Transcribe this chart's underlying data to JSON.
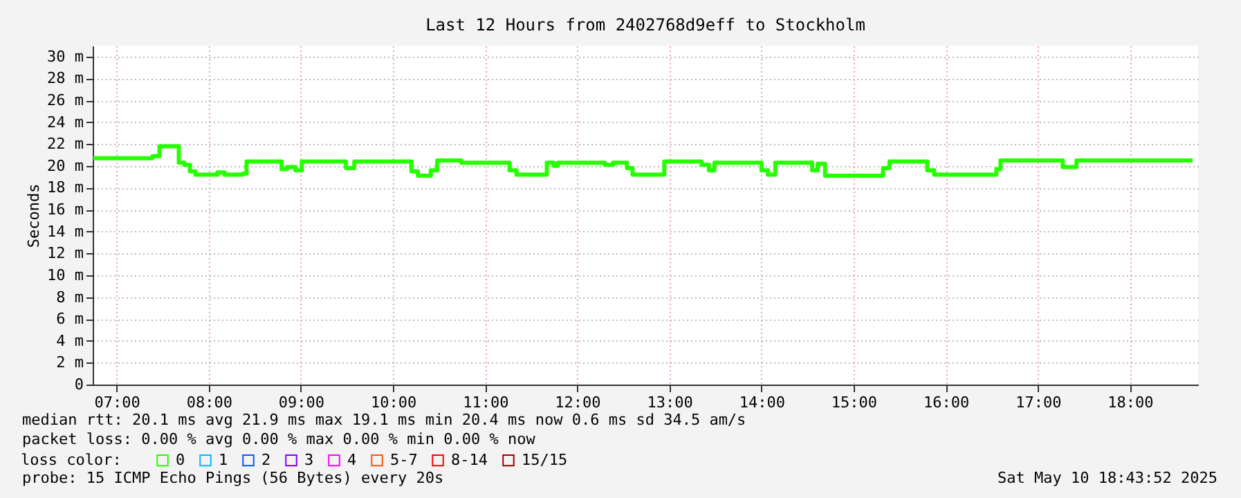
{
  "chart_data": {
    "type": "step",
    "title": "Last 12 Hours from 2402768d9eff to Stockholm",
    "ylabel": "Seconds",
    "x": [
      6.745,
      7.39,
      7.465,
      7.675,
      7.735,
      7.795,
      7.855,
      8.095,
      8.17,
      8.37,
      8.41,
      8.79,
      8.85,
      8.94,
      9.01,
      9.49,
      9.58,
      10.2,
      10.27,
      10.41,
      10.48,
      10.74,
      11.265,
      11.34,
      11.67,
      11.745,
      11.79,
      12.3,
      12.39,
      12.54,
      12.6,
      12.945,
      13.35,
      13.43,
      13.49,
      14.0,
      14.07,
      14.15,
      14.55,
      14.61,
      14.69,
      15.32,
      15.39,
      15.8,
      15.875,
      16.55,
      16.595,
      17.27,
      17.42,
      18.68
    ],
    "series": [
      {
        "name": "0",
        "color": "#26ff00",
        "values": [
          20.7,
          20.9,
          21.8,
          20.3,
          20.1,
          19.5,
          19.2,
          19.4,
          19.2,
          19.3,
          20.4,
          19.7,
          19.9,
          19.6,
          20.4,
          19.8,
          20.4,
          19.5,
          19.1,
          19.6,
          20.5,
          20.3,
          19.6,
          19.2,
          20.3,
          20.0,
          20.3,
          20.1,
          20.3,
          19.8,
          19.2,
          20.4,
          20.1,
          19.6,
          20.3,
          19.6,
          19.2,
          20.3,
          19.6,
          20.2,
          19.1,
          19.8,
          20.4,
          19.6,
          19.2,
          19.7,
          20.5,
          19.9,
          20.5,
          20.5
        ]
      },
      {
        "name": "1",
        "color": "#00b8ff",
        "values": [
          null,
          null,
          null,
          null,
          null,
          null,
          null,
          null,
          null,
          null,
          null,
          null,
          null,
          null,
          null,
          null,
          null,
          null,
          null,
          null,
          null,
          null,
          null,
          null,
          null,
          null,
          null,
          null,
          null,
          null,
          null,
          null,
          null,
          null,
          null,
          null,
          null,
          null,
          null,
          null,
          null,
          null,
          null,
          null,
          null,
          null,
          null,
          null,
          null,
          null
        ]
      },
      {
        "name": "2",
        "color": "#0059ff",
        "values": [
          null,
          null,
          null,
          null,
          null,
          null,
          null,
          null,
          null,
          null,
          null,
          null,
          null,
          null,
          null,
          null,
          null,
          null,
          null,
          null,
          null,
          null,
          null,
          null,
          null,
          null,
          null,
          null,
          null,
          null,
          null,
          null,
          null,
          null,
          null,
          null,
          null,
          null,
          null,
          null,
          null,
          null,
          null,
          null,
          null,
          null,
          null,
          null,
          null,
          null
        ]
      },
      {
        "name": "3",
        "color": "#7e00ff",
        "values": [
          null,
          null,
          null,
          null,
          null,
          null,
          null,
          null,
          null,
          null,
          null,
          null,
          null,
          null,
          null,
          null,
          null,
          null,
          null,
          null,
          null,
          null,
          null,
          null,
          null,
          null,
          null,
          null,
          null,
          null,
          null,
          null,
          null,
          null,
          null,
          null,
          null,
          null,
          null,
          null,
          null,
          null,
          null,
          null,
          null,
          null,
          null,
          null,
          null,
          null
        ]
      },
      {
        "name": "4",
        "color": "#ff00ff",
        "values": [
          null,
          null,
          null,
          null,
          null,
          null,
          null,
          null,
          null,
          null,
          null,
          null,
          null,
          null,
          null,
          null,
          null,
          null,
          null,
          null,
          null,
          null,
          null,
          null,
          null,
          null,
          null,
          null,
          null,
          null,
          null,
          null,
          null,
          null,
          null,
          null,
          null,
          null,
          null,
          null,
          null,
          null,
          null,
          null,
          null,
          null,
          null,
          null,
          null,
          null
        ]
      },
      {
        "name": "5-7",
        "color": "#ff5500",
        "values": [
          null,
          null,
          null,
          null,
          null,
          null,
          null,
          null,
          null,
          null,
          null,
          null,
          null,
          null,
          null,
          null,
          null,
          null,
          null,
          null,
          null,
          null,
          null,
          null,
          null,
          null,
          null,
          null,
          null,
          null,
          null,
          null,
          null,
          null,
          null,
          null,
          null,
          null,
          null,
          null,
          null,
          null,
          null,
          null,
          null,
          null,
          null,
          null,
          null,
          null
        ]
      },
      {
        "name": "8-14",
        "color": "#ff0000",
        "values": [
          null,
          null,
          null,
          null,
          null,
          null,
          null,
          null,
          null,
          null,
          null,
          null,
          null,
          null,
          null,
          null,
          null,
          null,
          null,
          null,
          null,
          null,
          null,
          null,
          null,
          null,
          null,
          null,
          null,
          null,
          null,
          null,
          null,
          null,
          null,
          null,
          null,
          null,
          null,
          null,
          null,
          null,
          null,
          null,
          null,
          null,
          null,
          null,
          null,
          null
        ]
      },
      {
        "name": "15/15",
        "color": "#a10000",
        "values": [
          null,
          null,
          null,
          null,
          null,
          null,
          null,
          null,
          null,
          null,
          null,
          null,
          null,
          null,
          null,
          null,
          null,
          null,
          null,
          null,
          null,
          null,
          null,
          null,
          null,
          null,
          null,
          null,
          null,
          null,
          null,
          null,
          null,
          null,
          null,
          null,
          null,
          null,
          null,
          null,
          null,
          null,
          null,
          null,
          null,
          null,
          null,
          null,
          null,
          null
        ]
      }
    ],
    "legend_title": "loss color:",
    "legend": "bottom",
    "xlim": [
      6.74,
      18.74
    ],
    "xticks": [
      {
        "value": 7,
        "label": "07:00"
      },
      {
        "value": 8,
        "label": "08:00"
      },
      {
        "value": 9,
        "label": "09:00"
      },
      {
        "value": 10,
        "label": "10:00"
      },
      {
        "value": 11,
        "label": "11:00"
      },
      {
        "value": 12,
        "label": "12:00"
      },
      {
        "value": 13,
        "label": "13:00"
      },
      {
        "value": 14,
        "label": "14:00"
      },
      {
        "value": 15,
        "label": "15:00"
      },
      {
        "value": 16,
        "label": "16:00"
      },
      {
        "value": 17,
        "label": "17:00"
      },
      {
        "value": 18,
        "label": "18:00"
      }
    ],
    "ylim": [
      0,
      31
    ],
    "yticks": [
      0,
      {
        "value": 2,
        "label": "2 m"
      },
      {
        "value": 4,
        "label": "4 m"
      },
      {
        "value": 6,
        "label": "6 m"
      },
      {
        "value": 8,
        "label": "8 m"
      },
      {
        "value": 10,
        "label": "10 m"
      },
      {
        "value": 12,
        "label": "12 m"
      },
      {
        "value": 14,
        "label": "14 m"
      },
      {
        "value": 16,
        "label": "16 m"
      },
      {
        "value": 18,
        "label": "18 m"
      },
      {
        "value": 20,
        "label": "20 m"
      },
      {
        "value": 22,
        "label": "22 m"
      },
      {
        "value": 24,
        "label": "24 m"
      },
      {
        "value": 26,
        "label": "26 m"
      },
      {
        "value": 28,
        "label": "28 m"
      },
      {
        "value": 30,
        "label": "30 m"
      }
    ],
    "grid": true,
    "annotations": [
      "median rtt:  20.1 ms avg  21.9 ms max  19.1 ms min  20.4 ms now  0.6 ms sd  34.5   am/s",
      "packet loss: 0.00 % avg  0.00 % max  0.00 % min  0.00 % now",
      "probe:       15 ICMP Echo Pings (56 Bytes) every 20s",
      "Sat May 10 18:43:52 2025"
    ]
  }
}
